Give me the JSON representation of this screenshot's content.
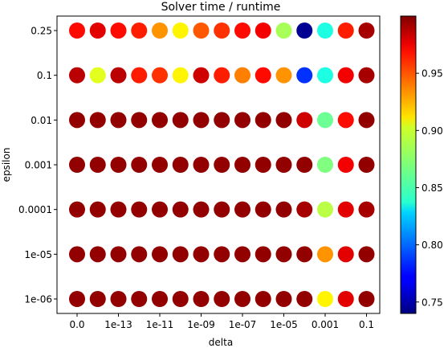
{
  "chart_data": {
    "type": "scatter",
    "title": "Solver time / runtime",
    "xlabel": "delta",
    "ylabel": "epsilon",
    "x_categories": [
      "0.0",
      "1e-14",
      "1e-13",
      "1e-12",
      "1e-11",
      "1e-10",
      "1e-09",
      "1e-08",
      "1e-07",
      "1e-06",
      "1e-05",
      "0.0001",
      "0.001",
      "0.01",
      "0.1"
    ],
    "x_tick_labels_shown": [
      "0.0",
      "1e-13",
      "1e-11",
      "1e-09",
      "1e-07",
      "1e-05",
      "0.001",
      "0.1"
    ],
    "y_categories": [
      "1e-06",
      "1e-05",
      "0.0001",
      "0.001",
      "0.01",
      "0.1",
      "0.25"
    ],
    "values": [
      [
        0.995,
        0.995,
        0.995,
        0.995,
        0.995,
        0.995,
        0.995,
        0.995,
        0.995,
        0.995,
        0.995,
        0.995,
        0.905,
        0.975,
        0.995
      ],
      [
        0.995,
        0.995,
        0.995,
        0.995,
        0.995,
        0.995,
        0.995,
        0.995,
        0.995,
        0.995,
        0.995,
        0.995,
        0.93,
        0.975,
        0.995
      ],
      [
        0.995,
        0.995,
        0.995,
        0.995,
        0.995,
        0.995,
        0.995,
        0.995,
        0.995,
        0.995,
        0.995,
        0.99,
        0.885,
        0.975,
        0.99
      ],
      [
        0.995,
        0.995,
        0.995,
        0.995,
        0.995,
        0.995,
        0.995,
        0.995,
        0.995,
        0.995,
        0.995,
        0.995,
        0.87,
        0.97,
        0.995
      ],
      [
        0.995,
        0.995,
        0.995,
        0.995,
        0.995,
        0.995,
        0.995,
        0.995,
        0.995,
        0.995,
        0.995,
        0.98,
        0.865,
        0.965,
        0.995
      ],
      [
        0.985,
        0.895,
        0.985,
        0.96,
        0.955,
        0.905,
        0.98,
        0.96,
        0.935,
        0.965,
        0.93,
        0.785,
        0.845,
        0.97,
        0.99
      ],
      [
        0.965,
        0.975,
        0.965,
        0.96,
        0.93,
        0.905,
        0.945,
        0.955,
        0.965,
        0.97,
        0.88,
        0.745,
        0.845,
        0.96,
        0.99
      ]
    ],
    "colorbar": {
      "colormap": "jet",
      "min": 0.74,
      "max": 1.0,
      "ticks": [
        "0.75",
        "0.80",
        "0.85",
        "0.90",
        "0.95"
      ],
      "tick_values": [
        0.75,
        0.8,
        0.85,
        0.9,
        0.95
      ]
    },
    "grid": false,
    "legend": "none"
  }
}
